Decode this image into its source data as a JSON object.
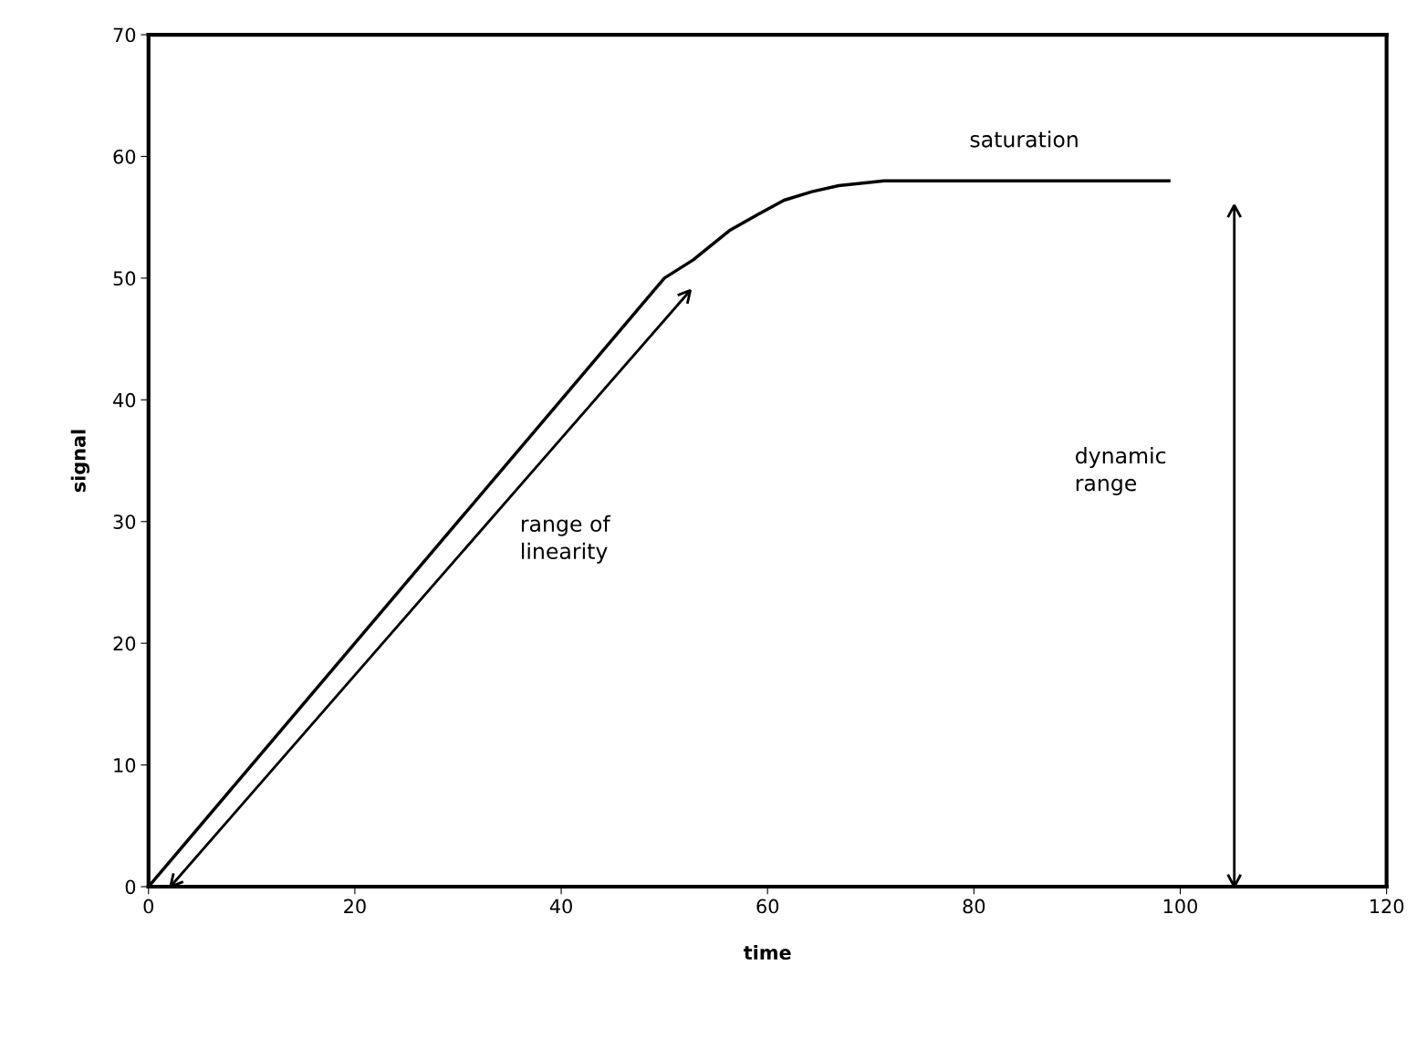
{
  "chart_data": {
    "type": "line",
    "xlabel": "time",
    "ylabel": "signal",
    "x": [
      0,
      10,
      20,
      30,
      40,
      45,
      50,
      52.8,
      56.3,
      59,
      61.6,
      64.3,
      66.9,
      71.3,
      80,
      90,
      98.9
    ],
    "series": [
      {
        "color": "#000000",
        "values": [
          0,
          10,
          20,
          30,
          40,
          45,
          50,
          51.5,
          53.9,
          55.2,
          56.4,
          57.1,
          57.6,
          58,
          58,
          58,
          58
        ]
      }
    ],
    "xlim": [
      0,
      120
    ],
    "xticks": [
      0,
      20,
      40,
      60,
      80,
      100,
      120
    ],
    "ylim": [
      0,
      70
    ],
    "yticks": [
      0,
      10,
      20,
      30,
      40,
      50,
      60,
      70
    ],
    "grid": false,
    "legend": false,
    "marker": "none",
    "line_style": "solid",
    "annotations": [
      "saturation",
      "range of\nlinearity",
      "dynamic\nrange"
    ]
  }
}
